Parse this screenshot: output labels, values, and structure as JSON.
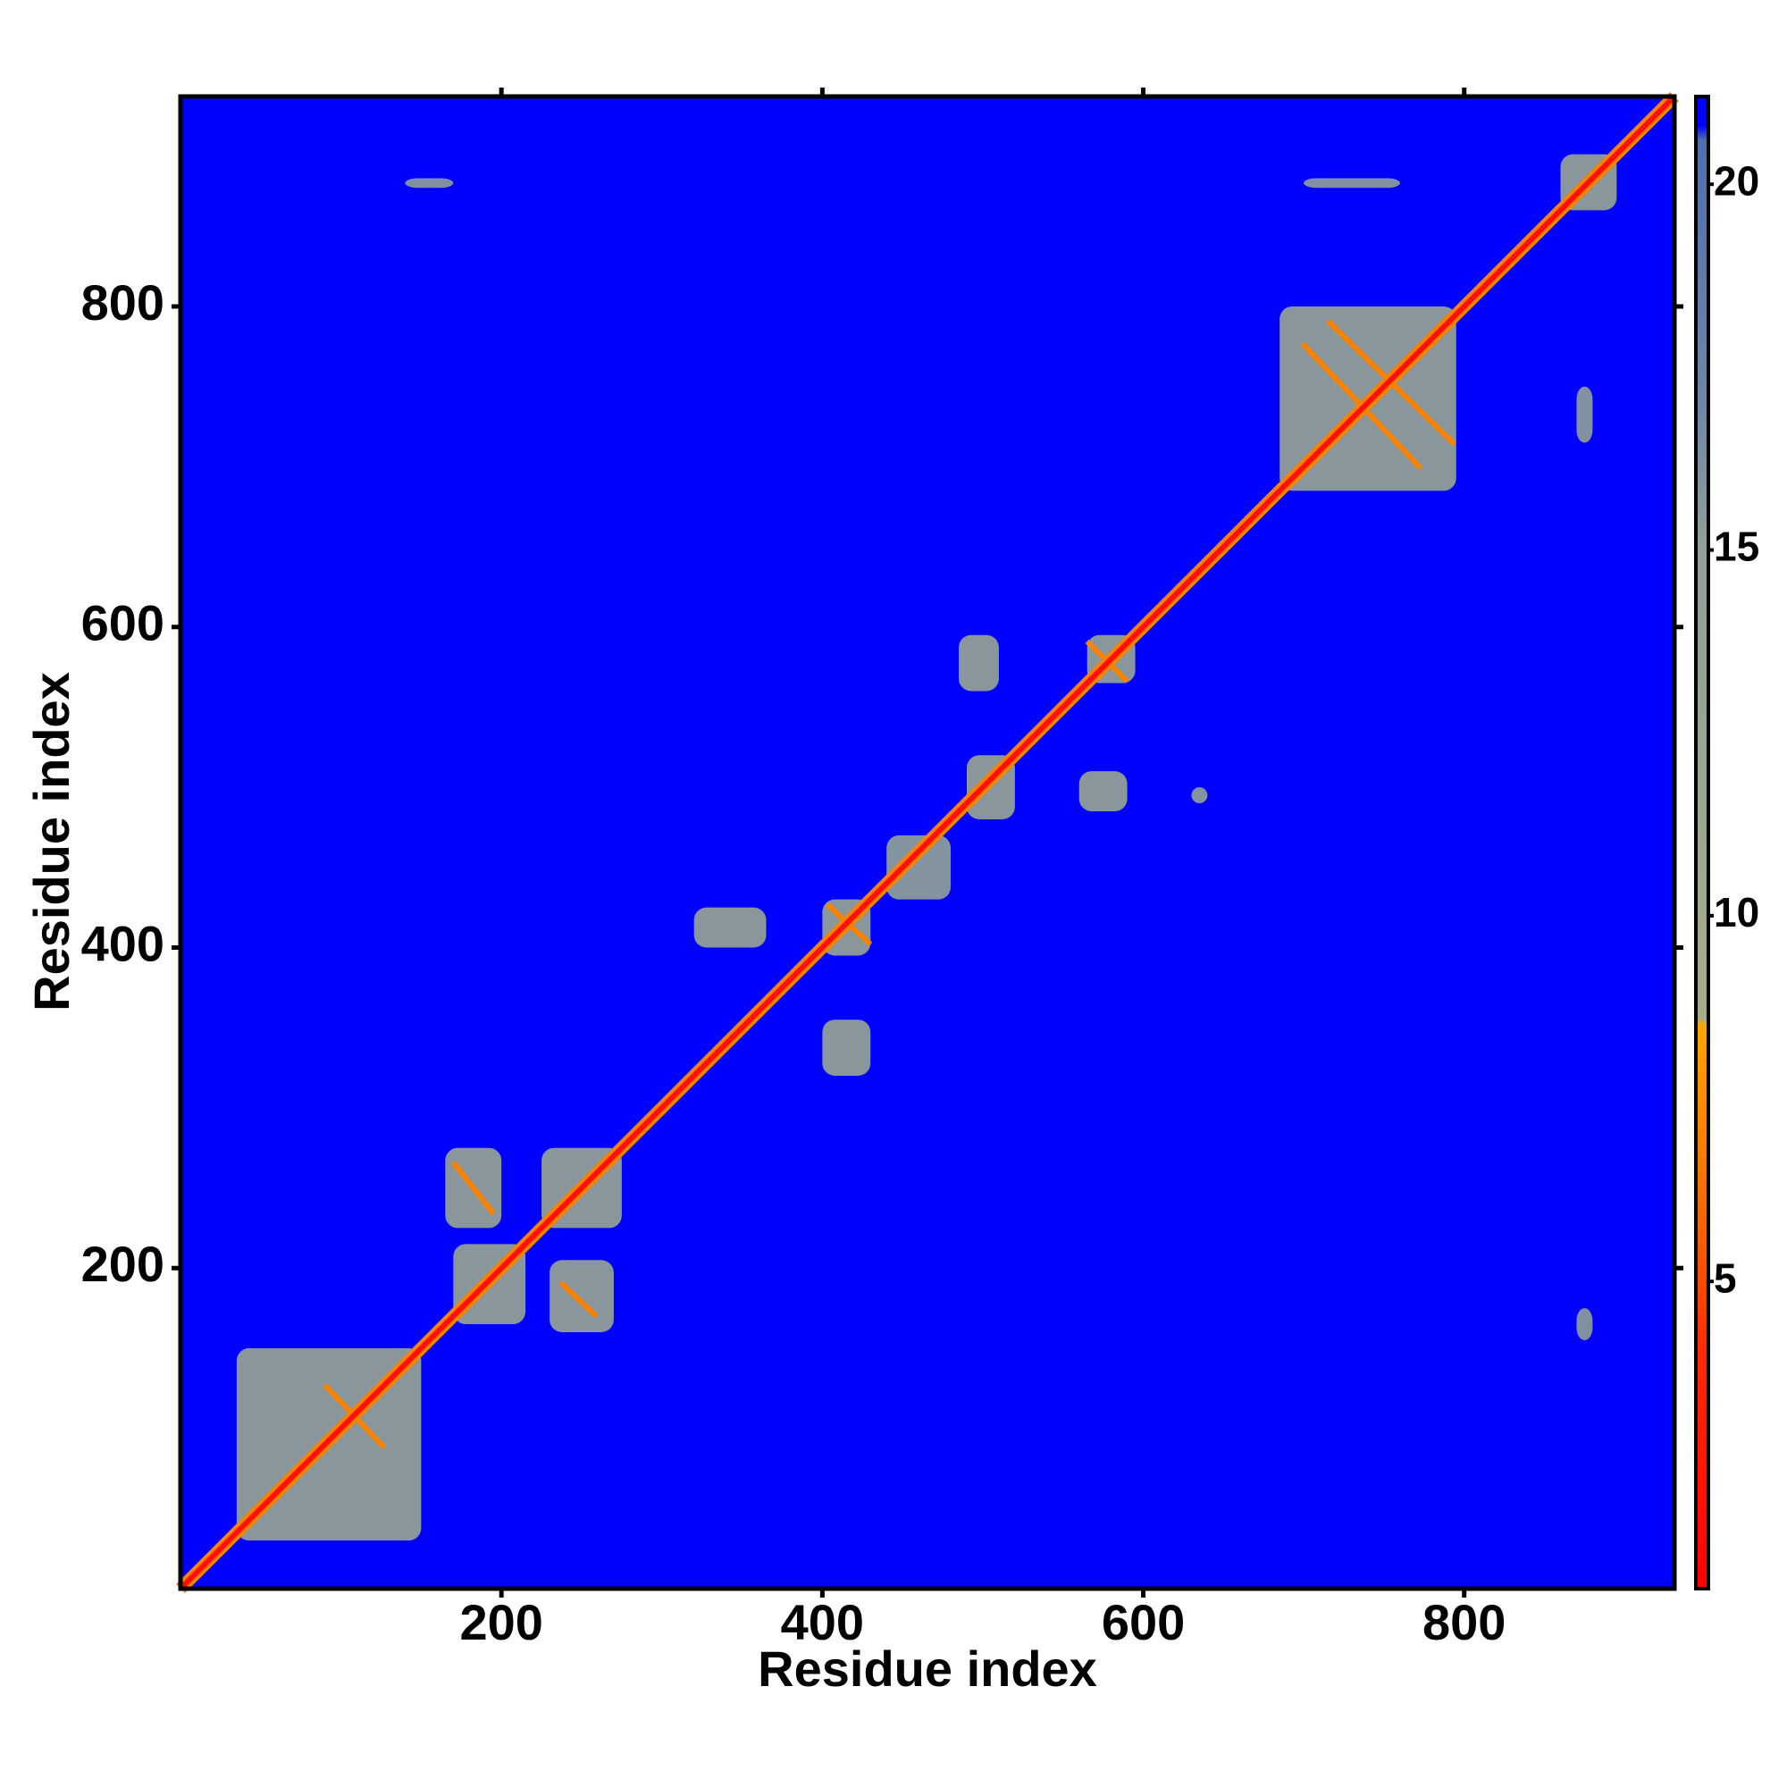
{
  "chart_data": {
    "type": "heatmap",
    "xlabel": "Residue index",
    "ylabel": "Residue index",
    "xlim": [
      0,
      931
    ],
    "ylim": [
      0,
      931
    ],
    "xticks": [
      200,
      400,
      600,
      800
    ],
    "yticks": [
      200,
      400,
      600,
      800
    ],
    "background_value": 21,
    "diagonal_value": 2,
    "patches": [
      {
        "x": [
          35,
          150
        ],
        "y": [
          30,
          150
        ],
        "value": 12
      },
      {
        "x": [
          170,
          215
        ],
        "y": [
          165,
          215
        ],
        "value": 12
      },
      {
        "x": [
          165,
          200
        ],
        "y": [
          225,
          275
        ],
        "value": 12
      },
      {
        "x": [
          230,
          270
        ],
        "y": [
          160,
          205
        ],
        "value": 12
      },
      {
        "x": [
          225,
          275
        ],
        "y": [
          225,
          275
        ],
        "value": 12
      },
      {
        "x": [
          320,
          365
        ],
        "y": [
          400,
          425
        ],
        "value": 12
      },
      {
        "x": [
          400,
          430
        ],
        "y": [
          320,
          355
        ],
        "value": 12
      },
      {
        "x": [
          400,
          430
        ],
        "y": [
          395,
          430
        ],
        "value": 12
      },
      {
        "x": [
          440,
          480
        ],
        "y": [
          430,
          470
        ],
        "value": 14
      },
      {
        "x": [
          490,
          520
        ],
        "y": [
          480,
          520
        ],
        "value": 12
      },
      {
        "x": [
          485,
          510
        ],
        "y": [
          560,
          595
        ],
        "value": 12
      },
      {
        "x": [
          560,
          590
        ],
        "y": [
          485,
          510
        ],
        "value": 12
      },
      {
        "x": [
          565,
          595
        ],
        "y": [
          565,
          595
        ],
        "value": 12
      },
      {
        "x": [
          630,
          640
        ],
        "y": [
          490,
          500
        ],
        "value": 14
      },
      {
        "x": [
          685,
          795
        ],
        "y": [
          685,
          800
        ],
        "value": 12
      },
      {
        "x": [
          860,
          895
        ],
        "y": [
          860,
          895
        ],
        "value": 12
      },
      {
        "x": [
          870,
          880
        ],
        "y": [
          155,
          175
        ],
        "value": 15
      },
      {
        "x": [
          870,
          880
        ],
        "y": [
          715,
          750
        ],
        "value": 15
      },
      {
        "x": [
          700,
          760
        ],
        "y": [
          874,
          880
        ],
        "value": 15
      },
      {
        "x": [
          140,
          170
        ],
        "y": [
          874,
          880
        ],
        "value": 15
      }
    ],
    "streaks": [
      {
        "x": [
          715,
          794
        ],
        "y": [
          791,
          714
        ],
        "value": 7
      },
      {
        "x": [
          699,
          773
        ],
        "y": [
          777,
          699
        ],
        "value": 7
      },
      {
        "x": [
          90,
          127
        ],
        "y": [
          127,
          88
        ],
        "value": 7
      },
      {
        "x": [
          403,
          430
        ],
        "y": [
          427,
          402
        ],
        "value": 7
      },
      {
        "x": [
          565,
          590
        ],
        "y": [
          591,
          566
        ],
        "value": 7
      },
      {
        "x": [
          170,
          195
        ],
        "y": [
          266,
          234
        ],
        "value": 7
      },
      {
        "x": [
          237,
          259
        ],
        "y": [
          191,
          170
        ],
        "value": 7
      }
    ],
    "colorbar": {
      "clim": [
        0.8,
        21.2
      ],
      "ticks": [
        5,
        10,
        15,
        20
      ],
      "colorscale": [
        [
          0.8,
          "#ff0000"
        ],
        [
          4,
          "#ff2a00"
        ],
        [
          6,
          "#f56a00"
        ],
        [
          8.5,
          "#ffa500"
        ],
        [
          8.6,
          "#a3ad88"
        ],
        [
          15,
          "#8fa198"
        ],
        [
          17,
          "#6e86a8"
        ],
        [
          20.6,
          "#4f6fb0"
        ],
        [
          20.8,
          "#0000ff"
        ],
        [
          21.2,
          "#0000ff"
        ]
      ]
    }
  }
}
